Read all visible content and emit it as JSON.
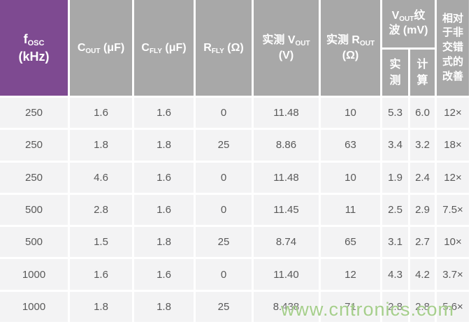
{
  "colors": {
    "header_purple": "#7e4a91",
    "header_gray": "#a8a8a8",
    "header_text": "#ffffff",
    "cell_background": "#f3f3f4",
    "cell_text": "#595959",
    "watermark_green": "#a6cf8c"
  },
  "table": {
    "header": {
      "fosc": {
        "letter": "f",
        "sub": "OSC",
        "line2": "(kHz)"
      },
      "cout": {
        "letter": "C",
        "sub": "OUT",
        "unit": " (μF)"
      },
      "cfly": {
        "letter": "C",
        "sub": "FLY",
        "unit": " (μF)"
      },
      "rfly": {
        "letter": "R",
        "sub": "FLY",
        "unit": " (Ω)"
      },
      "vout": {
        "prefix": "实测 V",
        "sub": "OUT",
        "line2": "(V)"
      },
      "rout": {
        "prefix": "实测 R",
        "sub": "OUT",
        "line2": "(Ω)"
      },
      "ripple": {
        "prefix": "V",
        "sub": "OUT",
        "suffix": "纹",
        "line2": "波 (mV)"
      },
      "ripple_measured": "实测",
      "ripple_calculated": "计算",
      "improvement": "相对于非交错式的改善"
    },
    "rows": [
      [
        "250",
        "1.6",
        "1.6",
        "0",
        "11.48",
        "10",
        "5.3",
        "6.0",
        "12×"
      ],
      [
        "250",
        "1.8",
        "1.8",
        "25",
        "8.86",
        "63",
        "3.4",
        "3.2",
        "18×"
      ],
      [
        "250",
        "4.6",
        "1.6",
        "0",
        "11.48",
        "10",
        "1.9",
        "2.4",
        "12×"
      ],
      [
        "500",
        "2.8",
        "1.6",
        "0",
        "11.45",
        "11",
        "2.5",
        "2.9",
        "7.5×"
      ],
      [
        "500",
        "1.5",
        "1.8",
        "25",
        "8.74",
        "65",
        "3.1",
        "2.7",
        "10×"
      ],
      [
        "1000",
        "1.6",
        "1.6",
        "0",
        "11.40",
        "12",
        "4.3",
        "4.2",
        "3.7×"
      ],
      [
        "1000",
        "1.8",
        "1.8",
        "25",
        "8.438",
        "71",
        "2.8",
        "2.8",
        "5.6×"
      ]
    ]
  },
  "watermark": {
    "text": "www.cntronics.com"
  },
  "chart_data": {
    "type": "table",
    "columns": [
      "fOSC (kHz)",
      "COUT (μF)",
      "CFLY (μF)",
      "RFLY (Ω)",
      "实测 VOUT (V)",
      "实测 ROUT (Ω)",
      "VOUT纹波 实测 (mV)",
      "VOUT纹波 计算 (mV)",
      "相对于非交错式的改善"
    ],
    "rows": [
      [
        250,
        1.6,
        1.6,
        0,
        11.48,
        10,
        5.3,
        6.0,
        "12×"
      ],
      [
        250,
        1.8,
        1.8,
        25,
        8.86,
        63,
        3.4,
        3.2,
        "18×"
      ],
      [
        250,
        4.6,
        1.6,
        0,
        11.48,
        10,
        1.9,
        2.4,
        "12×"
      ],
      [
        500,
        2.8,
        1.6,
        0,
        11.45,
        11,
        2.5,
        2.9,
        "7.5×"
      ],
      [
        500,
        1.5,
        1.8,
        25,
        8.74,
        65,
        3.1,
        2.7,
        "10×"
      ],
      [
        1000,
        1.6,
        1.6,
        0,
        11.4,
        12,
        4.3,
        4.2,
        "3.7×"
      ],
      [
        1000,
        1.8,
        1.8,
        25,
        8.438,
        71,
        2.8,
        2.8,
        "5.6×"
      ]
    ]
  }
}
